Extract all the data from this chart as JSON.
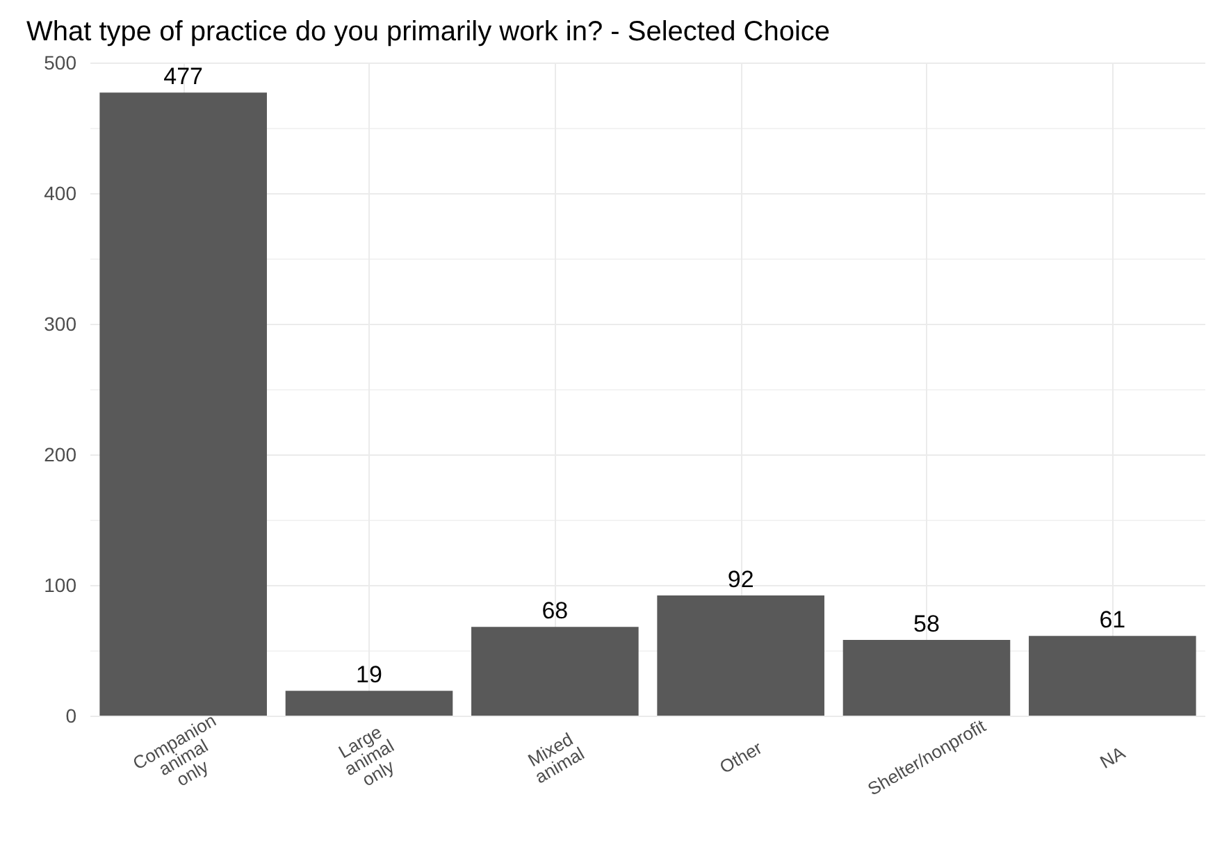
{
  "chart_data": {
    "type": "bar",
    "title": "What type of practice do you primarily work in? - Selected Choice",
    "categories": [
      "Companion animal only",
      "Large animal only",
      "Mixed animal",
      "Other",
      "Shelter/nonprofit",
      "NA"
    ],
    "values": [
      477,
      19,
      68,
      92,
      58,
      61
    ],
    "color": "#595959",
    "ylim": [
      0,
      500
    ],
    "yticks": [
      0,
      100,
      200,
      300,
      400,
      500
    ],
    "grid": true,
    "data_labels": true
  }
}
